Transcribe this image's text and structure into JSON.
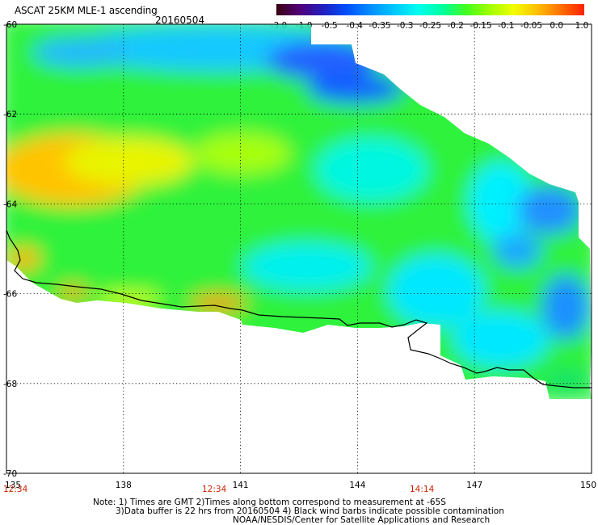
{
  "header": {
    "title": "ASCAT 25KM MLE-1 ascending",
    "date": "20160504"
  },
  "colorbar": {
    "ticks": [
      "-3.0",
      "-1.0",
      "-0.5",
      "-0.4",
      "-0.35",
      "-0.3",
      "-0.25",
      "-0.2",
      "-0.15",
      "-0.1",
      "-0.05",
      "0.0",
      "1.0"
    ],
    "colors": [
      "#3a0010",
      "#50007a",
      "#2020c0",
      "#0050ff",
      "#0090ff",
      "#00c8ff",
      "#00ffee",
      "#00ffa0",
      "#40ff20",
      "#a0ff00",
      "#f0ff00",
      "#ffc000",
      "#ff7000",
      "#ff2000"
    ]
  },
  "axes": {
    "lat_labels": [
      "-60",
      "-62",
      "-64",
      "-66",
      "-68",
      "-70"
    ],
    "lon_labels": [
      "135",
      "138",
      "141",
      "144",
      "147",
      "150"
    ],
    "time_labels": [
      "12:34",
      "12:34",
      "14:14"
    ]
  },
  "notes": {
    "line1": "Note: 1) Times are GMT 2)Times along bottom correspond to measurement at -65S",
    "line2": "3)Data buffer is 22 hrs from 20160504 4) Black wind barbs indicate possible contamination",
    "line3": "NOAA/NESDIS/Center for Satellite Applications and Research"
  }
}
